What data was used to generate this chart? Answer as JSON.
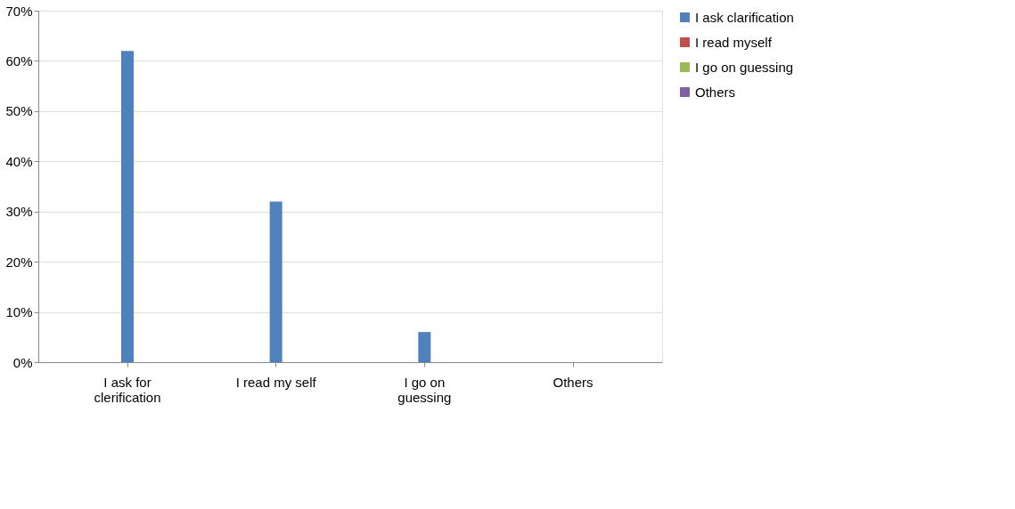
{
  "chart_data": {
    "type": "bar",
    "categories": [
      "I ask for clerification",
      "I read my self",
      "I go on guessing",
      "Others"
    ],
    "series": [
      {
        "name": "I  ask clarification",
        "color": "#4f81bd",
        "values": [
          62,
          32,
          6,
          0
        ]
      },
      {
        "name": "I read myself",
        "color": "#c0504d",
        "values": [
          null,
          null,
          null,
          null
        ]
      },
      {
        "name": "I go on guessing",
        "color": "#9bbb59",
        "values": [
          null,
          null,
          null,
          null
        ]
      },
      {
        "name": "Others",
        "color": "#8064a2",
        "values": [
          null,
          null,
          null,
          null
        ]
      }
    ],
    "ylim": [
      0,
      70
    ],
    "yticks": [
      {
        "value": 0,
        "label": "0%"
      },
      {
        "value": 10,
        "label": "10%"
      },
      {
        "value": 20,
        "label": "20%"
      },
      {
        "value": 30,
        "label": "30%"
      },
      {
        "value": 40,
        "label": "40%"
      },
      {
        "value": 50,
        "label": "50%"
      },
      {
        "value": 60,
        "label": "60%"
      },
      {
        "value": 70,
        "label": "70%"
      }
    ],
    "grid": "y",
    "legend": "right"
  }
}
